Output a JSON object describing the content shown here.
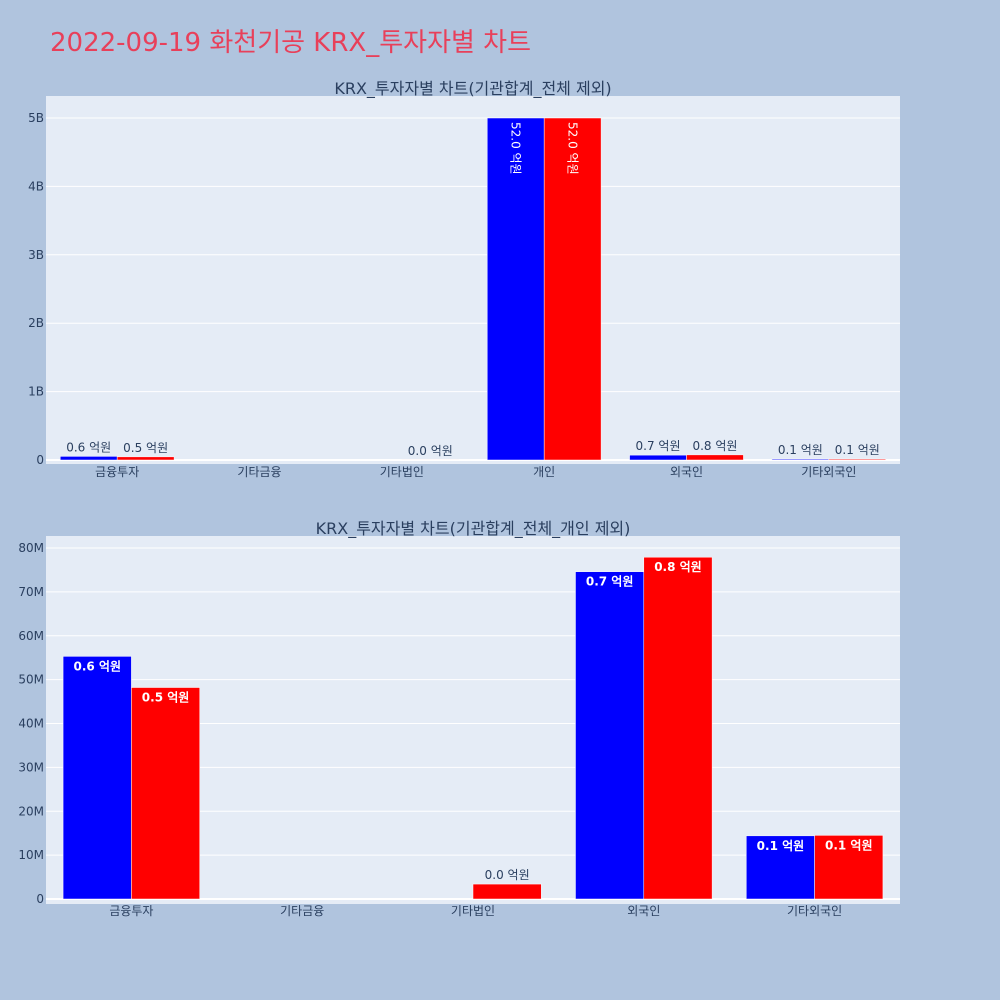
{
  "page_title": "2022-09-19 화천기공 KRX_투자자별 차트",
  "chart_data": [
    {
      "type": "bar",
      "title": "KRX_투자자별 차트(기관합계_전체 제외)",
      "categories": [
        "금융투자",
        "기타금융",
        "기타법인",
        "개인",
        "외국인",
        "기타외국인"
      ],
      "yticks": [
        "0",
        "1B",
        "2B",
        "3B",
        "4B",
        "5B"
      ],
      "ylim": [
        0,
        5550000000
      ],
      "grid": true,
      "series": [
        {
          "color": "#0000ff",
          "values": [
            55000000,
            0,
            0,
            5200000000,
            74000000,
            14000000
          ],
          "labels": [
            "0.6 억원",
            "",
            "",
            "52.0 억원",
            "0.7 억원",
            "0.1 억원"
          ]
        },
        {
          "color": "#ff0000",
          "values": [
            48000000,
            0,
            3000000,
            5200000000,
            78000000,
            14000000
          ],
          "labels": [
            "0.5 억원",
            "",
            "0.0 억원",
            "52.0 억원",
            "0.8 억원",
            "0.1 억원"
          ]
        }
      ]
    },
    {
      "type": "bar",
      "title": "KRX_투자자별 차트(기관합계_전체_개인 제외)",
      "categories": [
        "금융투자",
        "기타금융",
        "기타법인",
        "외국인",
        "기타외국인"
      ],
      "yticks": [
        "0",
        "10M",
        "20M",
        "30M",
        "40M",
        "50M",
        "60M",
        "70M",
        "80M"
      ],
      "ylim": [
        0,
        82000000
      ],
      "grid": true,
      "series": [
        {
          "color": "#0000ff",
          "values": [
            55300000,
            0,
            0,
            74600000,
            14400000
          ],
          "labels": [
            "0.6 억원",
            "",
            "",
            "0.7 억원",
            "0.1 억원"
          ]
        },
        {
          "color": "#ff0000",
          "values": [
            48200000,
            0,
            3400000,
            77900000,
            14500000
          ],
          "labels": [
            "0.5 억원",
            "",
            "0.0 억원",
            "0.8 억원",
            "0.1 억원"
          ]
        }
      ]
    }
  ]
}
